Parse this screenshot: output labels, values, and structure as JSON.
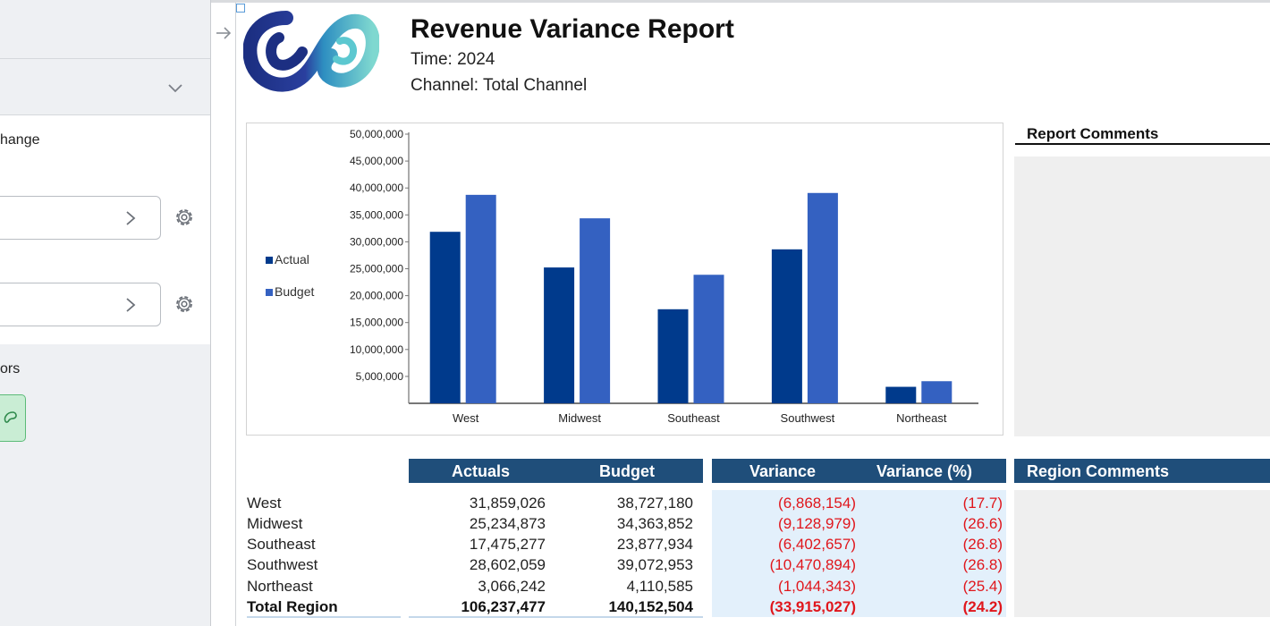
{
  "left_panel": {
    "partial_label_change": "hange",
    "partial_label_colors": "ors"
  },
  "report": {
    "title": "Revenue Variance Report",
    "time": "Time: 2024",
    "channel": "Channel: Total Channel",
    "report_comments_title": "Report Comments"
  },
  "chart_data": {
    "type": "bar",
    "categories": [
      "West",
      "Midwest",
      "Southeast",
      "Southwest",
      "Northeast"
    ],
    "series": [
      {
        "name": "Actual",
        "color": "#003a8c",
        "values": [
          31859026,
          25234873,
          17475277,
          28602059,
          3066242
        ]
      },
      {
        "name": "Budget",
        "color": "#3461c1",
        "values": [
          38727180,
          34363852,
          23877934,
          39072953,
          4110585
        ]
      }
    ],
    "ylim": [
      0,
      50000000
    ],
    "yticks": [
      "5,000,000",
      "10,000,000",
      "15,000,000",
      "20,000,000",
      "25,000,000",
      "30,000,000",
      "35,000,000",
      "40,000,000",
      "45,000,000",
      "50,000,000"
    ],
    "legend_position": "left"
  },
  "table": {
    "headers": {
      "actuals": "Actuals",
      "budget": "Budget",
      "variance": "Variance",
      "variance_pct": "Variance (%)",
      "region_comments": "Region Comments"
    },
    "rows": [
      {
        "region": "West",
        "actuals": "31,859,026",
        "budget": "38,727,180",
        "variance": "(6,868,154)",
        "variance_pct": "(17.7)"
      },
      {
        "region": "Midwest",
        "actuals": "25,234,873",
        "budget": "34,363,852",
        "variance": "(9,128,979)",
        "variance_pct": "(26.6)"
      },
      {
        "region": "Southeast",
        "actuals": "17,475,277",
        "budget": "23,877,934",
        "variance": "(6,402,657)",
        "variance_pct": "(26.8)"
      },
      {
        "region": "Southwest",
        "actuals": "28,602,059",
        "budget": "39,072,953",
        "variance": "(10,470,894)",
        "variance_pct": "(26.8)"
      },
      {
        "region": "Northeast",
        "actuals": "3,066,242",
        "budget": "4,110,585",
        "variance": "(1,044,343)",
        "variance_pct": "(25.4)"
      },
      {
        "region": "Total Region",
        "actuals": "106,237,477",
        "budget": "140,152,504",
        "variance": "(33,915,027)",
        "variance_pct": "(24.2)"
      }
    ]
  }
}
